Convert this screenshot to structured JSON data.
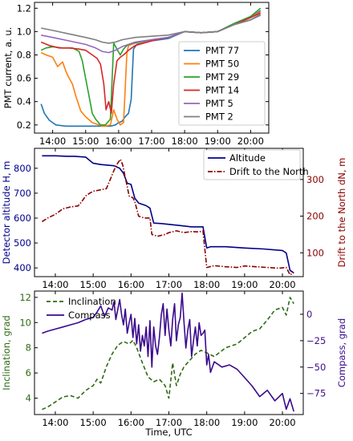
{
  "chart_data": [
    {
      "type": "line",
      "xlabel": "",
      "ylabel": "PMT current, a. u.",
      "ylim": [
        0.13,
        1.25
      ],
      "xlim": [
        13.45,
        20.55
      ],
      "xticks": [
        14,
        15,
        16,
        17,
        18,
        19,
        20
      ],
      "xtick_labels": [
        "14:00",
        "15:00",
        "16:00",
        "17:00",
        "18:00",
        "19:00",
        "20:00"
      ],
      "yticks": [
        0.2,
        0.4,
        0.6,
        0.8,
        1.0,
        1.2
      ],
      "ytick_labels": [
        "0.2",
        "0.4",
        "0.6",
        "0.8",
        "1.0",
        "1.2"
      ],
      "legend": "right",
      "series": [
        {
          "name": "PMT 77",
          "color": "#1f77b4",
          "x": [
            13.65,
            13.75,
            13.9,
            14.1,
            14.4,
            14.7,
            15.0,
            15.3,
            15.55,
            15.75,
            15.9,
            16.0,
            16.1,
            16.2,
            16.3,
            16.38,
            16.45,
            16.55,
            16.7,
            17.0,
            17.5,
            18.0,
            18.5,
            19.0,
            19.5,
            20.0,
            20.3
          ],
          "y": [
            0.38,
            0.3,
            0.24,
            0.2,
            0.19,
            0.19,
            0.19,
            0.19,
            0.19,
            0.19,
            0.2,
            0.22,
            0.23,
            0.27,
            0.3,
            0.42,
            0.85,
            0.89,
            0.9,
            0.92,
            0.94,
            1.0,
            0.99,
            1.0,
            1.06,
            1.12,
            1.18
          ]
        },
        {
          "name": "PMT 50",
          "color": "#ff7f0e",
          "x": [
            13.65,
            13.8,
            14.0,
            14.15,
            14.3,
            14.4,
            14.5,
            14.6,
            14.7,
            14.85,
            15.0,
            15.2,
            15.4,
            15.5,
            15.6,
            15.75,
            15.85,
            15.95,
            16.05,
            16.15,
            16.25,
            16.3,
            16.5,
            17.0,
            17.5,
            18.0,
            18.5,
            19.0,
            19.5,
            20.0,
            20.3
          ],
          "y": [
            0.82,
            0.8,
            0.78,
            0.7,
            0.74,
            0.66,
            0.6,
            0.55,
            0.45,
            0.32,
            0.27,
            0.22,
            0.2,
            0.19,
            0.19,
            0.2,
            0.33,
            0.25,
            0.2,
            0.22,
            0.82,
            0.88,
            0.9,
            0.93,
            0.95,
            1.0,
            0.99,
            1.0,
            1.06,
            1.12,
            1.17
          ]
        },
        {
          "name": "PMT 29",
          "color": "#2ca02c",
          "x": [
            13.65,
            13.8,
            14.0,
            14.3,
            14.6,
            14.8,
            14.9,
            15.0,
            15.1,
            15.2,
            15.3,
            15.45,
            15.6,
            15.75,
            15.85,
            15.95,
            16.05,
            16.15,
            16.25,
            16.4,
            16.6,
            17.0,
            17.5,
            18.0,
            18.5,
            19.0,
            19.5,
            20.0,
            20.3
          ],
          "y": [
            0.84,
            0.86,
            0.87,
            0.86,
            0.86,
            0.83,
            0.75,
            0.6,
            0.45,
            0.3,
            0.25,
            0.2,
            0.2,
            0.25,
            0.9,
            0.85,
            0.8,
            0.85,
            0.88,
            0.9,
            0.91,
            0.93,
            0.95,
            1.0,
            0.99,
            1.0,
            1.07,
            1.13,
            1.2
          ]
        },
        {
          "name": "PMT 14",
          "color": "#d62728",
          "x": [
            13.65,
            13.9,
            14.2,
            14.5,
            14.8,
            15.0,
            15.2,
            15.35,
            15.45,
            15.55,
            15.62,
            15.7,
            15.78,
            15.85,
            15.95,
            16.05,
            16.15,
            16.3,
            16.5,
            17.0,
            17.5,
            18.0,
            18.5,
            19.0,
            19.5,
            20.0,
            20.3
          ],
          "y": [
            0.91,
            0.88,
            0.86,
            0.86,
            0.85,
            0.84,
            0.8,
            0.77,
            0.72,
            0.55,
            0.33,
            0.4,
            0.3,
            0.55,
            0.75,
            0.78,
            0.8,
            0.84,
            0.88,
            0.92,
            0.95,
            1.0,
            0.99,
            1.0,
            1.06,
            1.12,
            1.16
          ]
        },
        {
          "name": "PMT 5",
          "color": "#9467bd",
          "x": [
            13.65,
            14.0,
            14.5,
            15.0,
            15.3,
            15.5,
            15.7,
            15.9,
            16.1,
            16.3,
            16.5,
            17.0,
            17.5,
            18.0,
            18.5,
            19.0,
            19.5,
            20.0,
            20.3
          ],
          "y": [
            0.97,
            0.95,
            0.92,
            0.89,
            0.86,
            0.83,
            0.82,
            0.84,
            0.87,
            0.89,
            0.91,
            0.93,
            0.95,
            1.0,
            0.99,
            1.0,
            1.06,
            1.1,
            1.14
          ]
        },
        {
          "name": "PMT 2",
          "color": "#7f7f7f",
          "x": [
            13.65,
            14.0,
            14.5,
            15.0,
            15.3,
            15.5,
            15.7,
            15.9,
            16.1,
            16.3,
            16.5,
            17.0,
            17.5,
            18.0,
            18.5,
            19.0,
            19.5,
            20.0,
            20.3
          ],
          "y": [
            1.03,
            1.01,
            0.98,
            0.95,
            0.93,
            0.91,
            0.9,
            0.91,
            0.93,
            0.94,
            0.95,
            0.96,
            0.97,
            1.0,
            0.99,
            1.0,
            1.06,
            1.1,
            1.15
          ]
        }
      ]
    },
    {
      "type": "line",
      "xlabel": "",
      "ylabel": "Detector altitude H, m",
      "y2label": "Drift to the North dN, m",
      "ylim": [
        365,
        880
      ],
      "y2lim": [
        35,
        385
      ],
      "xlim": [
        13.45,
        20.55
      ],
      "xticks": [
        14,
        15,
        16,
        17,
        18,
        19,
        20
      ],
      "xtick_labels": [
        "14:00",
        "15:00",
        "16:00",
        "17:00",
        "18:00",
        "19:00",
        "20:00"
      ],
      "yticks": [
        400,
        500,
        600,
        700,
        800
      ],
      "ytick_labels": [
        "400",
        "500",
        "600",
        "700",
        "800"
      ],
      "y2ticks": [
        100,
        200,
        300
      ],
      "y2tick_labels": [
        "100",
        "200",
        "300"
      ],
      "legend": "top-right",
      "series": [
        {
          "name": "Altitude",
          "color": "#00008b",
          "axis": "left",
          "x": [
            13.65,
            14.0,
            14.3,
            14.5,
            14.8,
            15.0,
            15.2,
            15.4,
            15.55,
            15.7,
            15.8,
            15.9,
            16.0,
            16.1,
            16.2,
            16.4,
            16.5,
            16.6,
            16.8,
            17.0,
            17.3,
            17.6,
            17.9,
            18.0,
            18.1,
            18.5,
            19.0,
            19.5,
            20.0,
            20.1,
            20.2,
            20.3
          ],
          "y": [
            850,
            850,
            848,
            848,
            845,
            820,
            815,
            812,
            810,
            800,
            780,
            740,
            735,
            680,
            660,
            650,
            640,
            580,
            578,
            575,
            570,
            565,
            565,
            480,
            485,
            485,
            480,
            476,
            470,
            460,
            390,
            380
          ]
        },
        {
          "name": "Drift to the North",
          "color": "#8b0000",
          "axis": "right",
          "dashed": true,
          "x": [
            13.65,
            13.8,
            14.0,
            14.2,
            14.4,
            14.6,
            14.7,
            14.8,
            14.9,
            15.0,
            15.1,
            15.2,
            15.35,
            15.45,
            15.55,
            15.65,
            15.72,
            15.78,
            15.85,
            15.95,
            16.05,
            16.1,
            16.2,
            16.35,
            16.5,
            16.55,
            16.7,
            16.9,
            17.0,
            17.2,
            17.4,
            17.6,
            17.8,
            17.9,
            18.0,
            18.2,
            18.5,
            18.8,
            19.0,
            19.3,
            19.6,
            19.9,
            20.1,
            20.2,
            20.3
          ],
          "y": [
            185,
            195,
            205,
            220,
            225,
            228,
            240,
            255,
            262,
            268,
            270,
            272,
            275,
            300,
            325,
            345,
            355,
            340,
            305,
            255,
            250,
            240,
            200,
            195,
            195,
            150,
            145,
            150,
            155,
            160,
            155,
            158,
            157,
            160,
            60,
            65,
            62,
            60,
            64,
            62,
            60,
            58,
            60,
            40,
            45
          ]
        }
      ]
    },
    {
      "type": "line",
      "xlabel": "Time, UTC",
      "ylabel": "Inclination, grad",
      "y2label": "Compass, grad",
      "ylim": [
        2.7,
        12.5
      ],
      "y2lim": [
        -95,
        22
      ],
      "xlim": [
        13.45,
        20.55
      ],
      "xticks": [
        14,
        15,
        16,
        17,
        18,
        19,
        20
      ],
      "xtick_labels": [
        "14:00",
        "15:00",
        "16:00",
        "17:00",
        "18:00",
        "19:00",
        "20:00"
      ],
      "yticks": [
        4,
        6,
        8,
        10,
        12
      ],
      "ytick_labels": [
        "4",
        "6",
        "8",
        "10",
        "12"
      ],
      "y2ticks": [
        -75,
        -50,
        -25,
        0
      ],
      "y2tick_labels": [
        "−75",
        "−50",
        "−25",
        "0"
      ],
      "legend": "top-left",
      "series": [
        {
          "name": "Inclination",
          "color": "#2e6b14",
          "axis": "left",
          "dashed": true,
          "x": [
            13.65,
            13.8,
            14.0,
            14.2,
            14.4,
            14.6,
            14.8,
            15.0,
            15.1,
            15.2,
            15.35,
            15.5,
            15.65,
            15.8,
            15.95,
            16.05,
            16.15,
            16.3,
            16.45,
            16.6,
            16.75,
            16.9,
            17.0,
            17.1,
            17.2,
            17.3,
            17.4,
            17.55,
            17.7,
            17.85,
            18.0,
            18.2,
            18.5,
            18.8,
            19.0,
            19.2,
            19.4,
            19.6,
            19.8,
            20.0,
            20.1,
            20.2,
            20.3
          ],
          "y": [
            3.1,
            3.3,
            3.7,
            4.1,
            4.2,
            4.0,
            4.6,
            5.0,
            5.5,
            5.2,
            6.5,
            7.5,
            8.2,
            8.5,
            8.3,
            8.6,
            8.0,
            6.8,
            5.7,
            5.3,
            5.5,
            5.0,
            4.0,
            6.8,
            5.0,
            5.9,
            6.5,
            7.0,
            7.5,
            7.8,
            7.6,
            7.3,
            8.0,
            8.3,
            8.8,
            9.3,
            9.5,
            10.2,
            11.0,
            11.2,
            10.6,
            12.0,
            11.5
          ]
        },
        {
          "name": "Compass",
          "color": "#3b0a8c",
          "axis": "right",
          "x": [
            13.65,
            13.8,
            14.0,
            14.2,
            14.4,
            14.6,
            14.8,
            15.0,
            15.1,
            15.2,
            15.3,
            15.4,
            15.5,
            15.55,
            15.6,
            15.7,
            15.75,
            15.8,
            15.85,
            15.9,
            15.95,
            16.0,
            16.05,
            16.1,
            16.15,
            16.2,
            16.25,
            16.3,
            16.35,
            16.4,
            16.45,
            16.5,
            16.55,
            16.6,
            16.65,
            16.7,
            16.75,
            16.8,
            16.85,
            16.9,
            16.95,
            17.0,
            17.05,
            17.1,
            17.15,
            17.2,
            17.25,
            17.3,
            17.35,
            17.4,
            17.45,
            17.5,
            17.55,
            17.6,
            17.65,
            17.7,
            17.75,
            17.8,
            17.85,
            17.9,
            17.95,
            18.0,
            18.05,
            18.1,
            18.2,
            18.4,
            18.6,
            18.8,
            19.0,
            19.2,
            19.4,
            19.6,
            19.8,
            20.0,
            20.1,
            20.2,
            20.3
          ],
          "y": [
            -18,
            -16,
            -14,
            -12,
            -10,
            -8,
            -5,
            -3,
            2,
            8,
            -2,
            6,
            4,
            12,
            -5,
            14,
            0,
            -10,
            5,
            -18,
            -8,
            0,
            -22,
            -4,
            -28,
            -10,
            -35,
            -20,
            -30,
            -12,
            -40,
            -6,
            -50,
            -12,
            -30,
            -38,
            -22,
            0,
            10,
            -20,
            5,
            -15,
            -30,
            -5,
            10,
            -25,
            -10,
            -3,
            20,
            -8,
            -32,
            -15,
            -5,
            -40,
            -25,
            -12,
            -30,
            -8,
            -20,
            -18,
            -15,
            -48,
            -38,
            -55,
            -45,
            -50,
            -48,
            -52,
            -60,
            -68,
            -78,
            -72,
            -82,
            -75,
            -90,
            -80,
            -92
          ]
        }
      ]
    }
  ]
}
